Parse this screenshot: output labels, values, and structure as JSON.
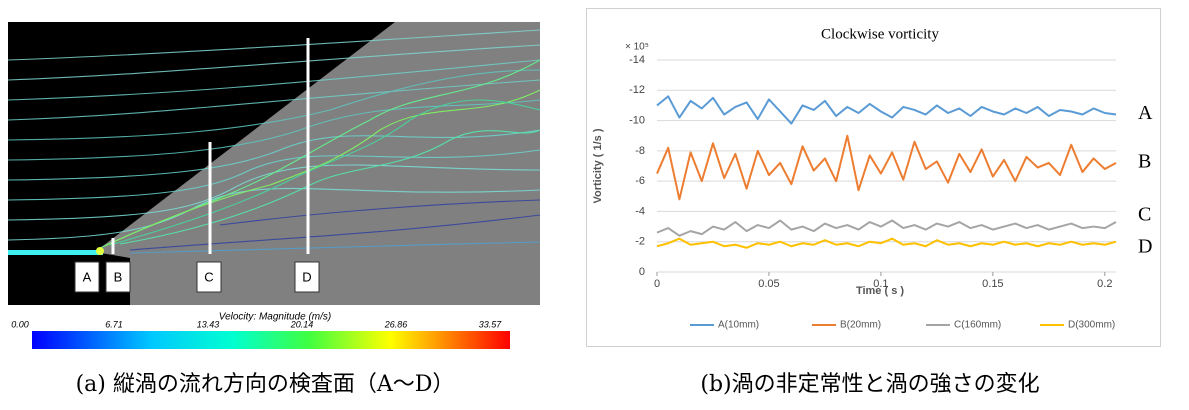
{
  "figure_a": {
    "planes": [
      "A",
      "B",
      "C",
      "D"
    ],
    "colorbar": {
      "title": "Velocity: Magnitude (m/s)",
      "labels": [
        "0.00",
        "6.71",
        "13.43",
        "20.14",
        "26.86",
        "33.57"
      ]
    },
    "caption": "(a) 縦渦の流れ方向の検査面（A～D）"
  },
  "figure_b": {
    "caption": "(b)渦の非定常性と渦の強さの変化"
  },
  "chart_data": {
    "type": "line",
    "title": "Clockwise vorticity",
    "multiplier": "× 10⁵",
    "ylabel": "Vorticity ( 1/s )",
    "xlabel": "Time ( s )",
    "x": [
      0,
      0.005,
      0.01,
      0.015,
      0.02,
      0.025,
      0.03,
      0.035,
      0.04,
      0.045,
      0.05,
      0.055,
      0.06,
      0.065,
      0.07,
      0.075,
      0.08,
      0.085,
      0.09,
      0.095,
      0.1,
      0.105,
      0.11,
      0.115,
      0.12,
      0.125,
      0.13,
      0.135,
      0.14,
      0.145,
      0.15,
      0.155,
      0.16,
      0.165,
      0.17,
      0.175,
      0.18,
      0.185,
      0.19,
      0.195,
      0.2,
      0.205
    ],
    "series": [
      {
        "name": "A(10mm)",
        "color": "#5b9bd5",
        "values": [
          -11,
          -11.6,
          -10.2,
          -11.3,
          -10.8,
          -11.5,
          -10.4,
          -10.9,
          -11.2,
          -10.1,
          -11.4,
          -10.6,
          -9.8,
          -11.0,
          -10.7,
          -11.3,
          -10.3,
          -10.9,
          -10.5,
          -11.1,
          -10.6,
          -10.2,
          -10.9,
          -10.7,
          -10.4,
          -11.0,
          -10.5,
          -10.8,
          -10.3,
          -10.9,
          -10.6,
          -10.4,
          -10.8,
          -10.5,
          -10.9,
          -10.3,
          -10.7,
          -10.6,
          -10.4,
          -10.8,
          -10.5,
          -10.4
        ]
      },
      {
        "name": "B(20mm)",
        "color": "#ed7d31",
        "values": [
          -6.5,
          -8.2,
          -4.8,
          -7.9,
          -6.0,
          -8.5,
          -6.2,
          -7.8,
          -5.5,
          -8.0,
          -6.4,
          -7.2,
          -5.8,
          -8.3,
          -6.7,
          -7.5,
          -6.0,
          -9.0,
          -5.4,
          -7.7,
          -6.5,
          -7.9,
          -6.1,
          -8.6,
          -6.8,
          -7.3,
          -5.9,
          -7.8,
          -6.6,
          -8.1,
          -6.3,
          -7.4,
          -6.0,
          -7.6,
          -6.9,
          -7.2,
          -6.4,
          -8.4,
          -6.6,
          -7.5,
          -6.8,
          -7.2
        ]
      },
      {
        "name": "C(160mm)",
        "color": "#a5a5a5",
        "values": [
          -2.6,
          -2.9,
          -2.4,
          -2.7,
          -2.5,
          -3.0,
          -2.8,
          -3.3,
          -2.7,
          -3.1,
          -2.9,
          -3.4,
          -2.8,
          -3.0,
          -2.7,
          -3.2,
          -2.9,
          -3.1,
          -2.8,
          -3.3,
          -3.0,
          -3.4,
          -2.9,
          -3.1,
          -2.8,
          -3.2,
          -3.0,
          -3.3,
          -2.9,
          -3.1,
          -2.8,
          -3.0,
          -3.2,
          -2.9,
          -3.1,
          -2.8,
          -3.0,
          -3.2,
          -2.9,
          -3.0,
          -2.9,
          -3.3
        ]
      },
      {
        "name": "D(300mm)",
        "color": "#ffc000",
        "values": [
          -1.7,
          -1.9,
          -2.2,
          -1.8,
          -1.9,
          -2.0,
          -1.7,
          -1.8,
          -1.6,
          -1.9,
          -1.8,
          -2.0,
          -1.7,
          -1.9,
          -1.8,
          -2.1,
          -1.8,
          -1.9,
          -1.7,
          -2.0,
          -1.9,
          -2.2,
          -1.8,
          -1.9,
          -1.7,
          -2.1,
          -1.8,
          -1.9,
          -1.7,
          -1.9,
          -1.8,
          -2.0,
          -1.8,
          -1.9,
          -1.7,
          -1.9,
          -1.8,
          -2.0,
          -1.8,
          -1.9,
          -1.8,
          -2.0
        ]
      }
    ],
    "end_labels": [
      "A",
      "B",
      "C",
      "D"
    ],
    "xlim": [
      0,
      0.205
    ],
    "xticks": [
      0,
      0.05,
      0.1,
      0.15,
      0.2
    ],
    "ylim": [
      0,
      -14
    ],
    "yticks": [
      -14,
      -12,
      -10,
      -8,
      -6,
      -4,
      -2,
      0
    ],
    "grid": true,
    "legend": "bottom"
  }
}
